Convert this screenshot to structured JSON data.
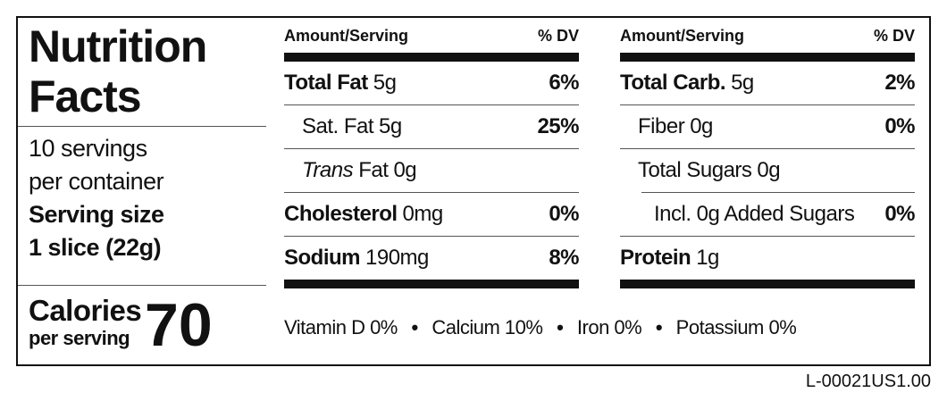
{
  "panel": {
    "title": [
      "Nutrition",
      "Facts"
    ],
    "servings": [
      "10 servings",
      "per container"
    ],
    "serving_size": {
      "label": "Serving size",
      "value": "1 slice (22g)"
    },
    "calories": {
      "label": "Calories",
      "sublabel": "per serving",
      "value": "70"
    }
  },
  "left_table": {
    "header": [
      "Amount/Serving",
      "% DV"
    ],
    "rows": [
      {
        "name": "Total Fat",
        "amount": "5g",
        "dv": "6%"
      },
      {
        "name": "Sat. Fat",
        "amount": "5g",
        "dv": "25%"
      },
      {
        "prefix": "Trans",
        "name": "Fat",
        "amount": "0g"
      },
      {
        "name": "Cholesterol",
        "amount": "0mg",
        "dv": "0%"
      },
      {
        "name": "Sodium",
        "amount": "190mg",
        "dv": "8%"
      }
    ]
  },
  "right_table": {
    "header": [
      "Amount/Serving",
      "% DV"
    ],
    "rows": [
      {
        "name": "Total Carb.",
        "amount": "5g",
        "dv": "2%"
      },
      {
        "name": "Fiber",
        "amount": "0g",
        "dv": "0%"
      },
      {
        "name": "Total Sugars",
        "amount": "0g"
      },
      {
        "name": "Incl. 0g Added Sugars",
        "dv": "0%"
      },
      {
        "name": "Protein",
        "amount": "1g"
      }
    ]
  },
  "vitamins": [
    "Vitamin D 0%",
    "Calcium 10%",
    "Iron 0%",
    "Potassium 0%"
  ],
  "code": "L-00021US1.00"
}
